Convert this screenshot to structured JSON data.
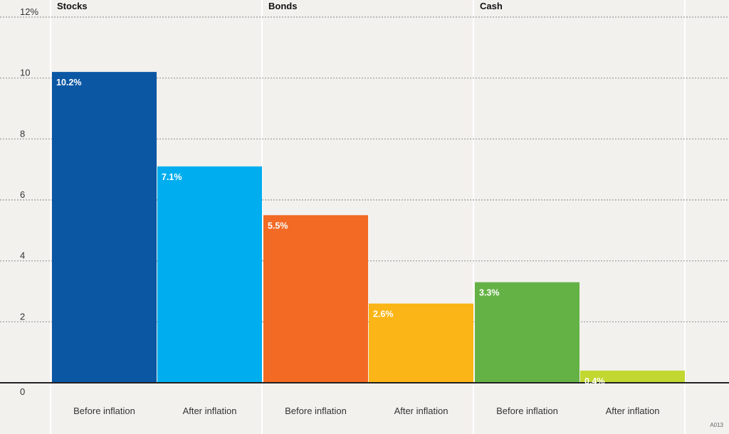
{
  "chart_data": {
    "type": "bar",
    "groups": [
      {
        "name": "Stocks",
        "bars": [
          {
            "category": "Before inflation",
            "value": 10.2,
            "label": "10.2%",
            "color": "#0b57a4"
          },
          {
            "category": "After inflation",
            "value": 7.1,
            "label": "7.1%",
            "color": "#00aeef"
          }
        ]
      },
      {
        "name": "Bonds",
        "bars": [
          {
            "category": "Before inflation",
            "value": 5.5,
            "label": "5.5%",
            "color": "#f26a24"
          },
          {
            "category": "After inflation",
            "value": 2.6,
            "label": "2.6%",
            "color": "#fbb516"
          }
        ]
      },
      {
        "name": "Cash",
        "bars": [
          {
            "category": "Before inflation",
            "value": 3.3,
            "label": "3.3%",
            "color": "#64b246"
          },
          {
            "category": "After inflation",
            "value": 0.4,
            "label": "0.4%",
            "color": "#c2d730"
          }
        ]
      }
    ],
    "ylim": [
      0,
      12
    ],
    "yticks": [
      {
        "value": 0,
        "label": "0"
      },
      {
        "value": 2,
        "label": "2"
      },
      {
        "value": 4,
        "label": "4"
      },
      {
        "value": 6,
        "label": "6"
      },
      {
        "value": 8,
        "label": "8"
      },
      {
        "value": 10,
        "label": "10"
      },
      {
        "value": 12,
        "label": "12%"
      }
    ],
    "grid": true,
    "title": "",
    "xlabel": "",
    "ylabel": ""
  },
  "footer": {
    "code": "A013"
  },
  "colors": {
    "background": "#f3f1ee",
    "gridline": "#9a9a9a",
    "divider": "#ffffff",
    "axis": "#222222"
  }
}
